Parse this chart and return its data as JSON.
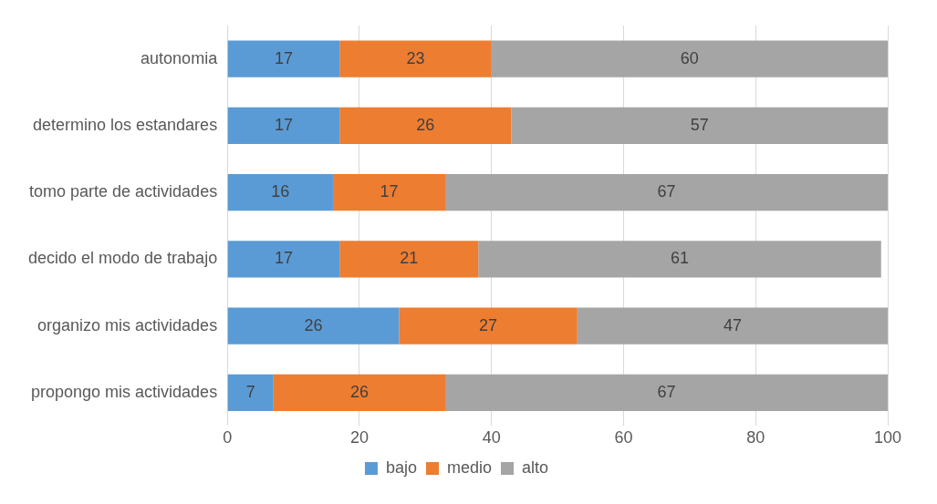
{
  "chart_data": {
    "type": "bar",
    "orientation": "horizontal",
    "stacked": true,
    "categories": [
      "autonomia",
      "determino los estandares",
      "tomo parte de actividades",
      "decido el modo de trabajo",
      "organizo mis actividades",
      "propongo mis actividades"
    ],
    "series": [
      {
        "name": "bajo",
        "color": "#5b9bd5",
        "values": [
          17,
          17,
          16,
          17,
          26,
          7
        ]
      },
      {
        "name": "medio",
        "color": "#ed7d31",
        "values": [
          23,
          26,
          17,
          21,
          27,
          26
        ]
      },
      {
        "name": "alto",
        "color": "#a5a5a5",
        "values": [
          60,
          57,
          67,
          61,
          47,
          67
        ]
      }
    ],
    "xlim": [
      0,
      100
    ],
    "xticks": [
      0,
      20,
      40,
      60,
      80,
      100
    ],
    "grid": "x",
    "legend": "bottom",
    "data_labels": true
  }
}
